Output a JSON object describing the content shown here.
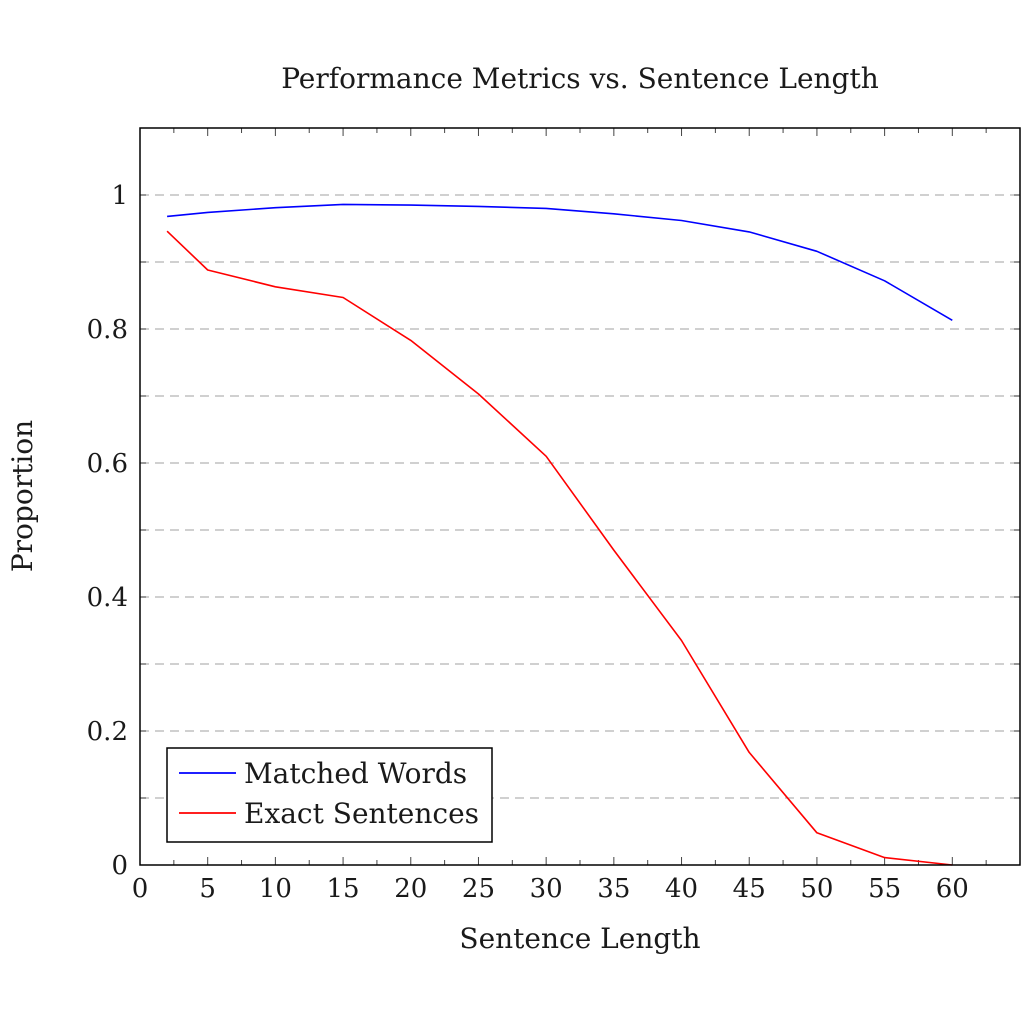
{
  "chart_data": {
    "type": "line",
    "title": "Performance Metrics vs. Sentence Length",
    "xlabel": "Sentence Length",
    "ylabel": "Proportion",
    "xlim": [
      0,
      65
    ],
    "ylim": [
      0,
      1.1
    ],
    "x_ticks": [
      0,
      5,
      10,
      15,
      20,
      25,
      30,
      35,
      40,
      45,
      50,
      55,
      60
    ],
    "x_tick_labels": [
      "0",
      "5",
      "10",
      "15",
      "20",
      "25",
      "30",
      "35",
      "40",
      "45",
      "50",
      "55",
      "60"
    ],
    "y_ticks": [
      0,
      0.2,
      0.4,
      0.6,
      0.8,
      1
    ],
    "y_tick_labels": [
      "0",
      "0.2",
      "0.4",
      "0.6",
      "0.8",
      "1"
    ],
    "y_grid": [
      0.1,
      0.2,
      0.3,
      0.4,
      0.5,
      0.6,
      0.7,
      0.8,
      0.9,
      1.0
    ],
    "grid": true,
    "legend_position": "bottom-left",
    "series": [
      {
        "name": "Matched Words",
        "color": "#0000ff",
        "x": [
          2,
          5,
          10,
          15,
          20,
          25,
          30,
          35,
          40,
          45,
          50,
          55,
          60
        ],
        "y": [
          0.968,
          0.974,
          0.981,
          0.986,
          0.985,
          0.983,
          0.98,
          0.972,
          0.962,
          0.945,
          0.916,
          0.872,
          0.813
        ]
      },
      {
        "name": "Exact Sentences",
        "color": "#ff0000",
        "x": [
          2,
          5,
          10,
          15,
          20,
          25,
          30,
          35,
          40,
          45,
          50,
          55,
          60
        ],
        "y": [
          0.946,
          0.888,
          0.863,
          0.847,
          0.783,
          0.703,
          0.61,
          0.47,
          0.335,
          0.168,
          0.048,
          0.011,
          0.0
        ]
      }
    ]
  }
}
